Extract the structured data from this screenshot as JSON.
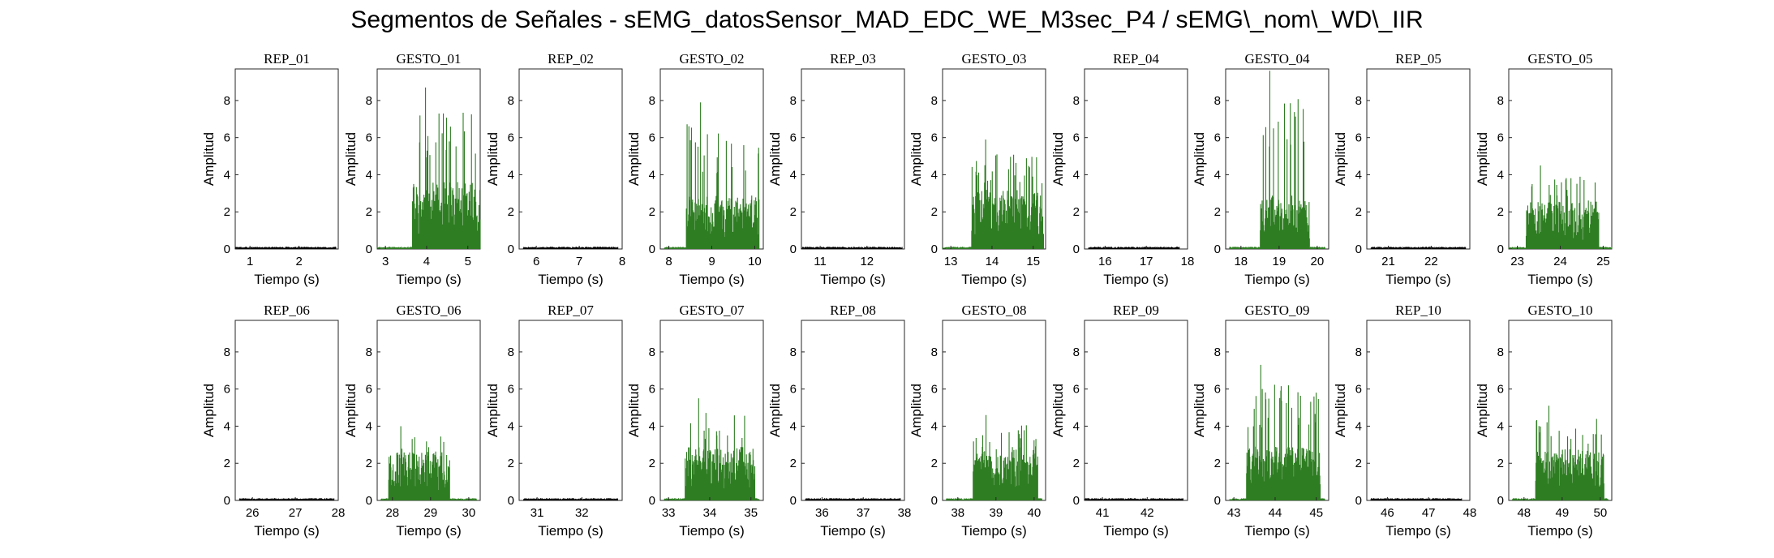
{
  "figure_title": "Segmentos de Señales - sEMG_datosSensor_MAD_EDC_WE_M3sec_P4 / sEMG\\_nom\\_WD\\_IIR",
  "chart_data": {
    "type": "line",
    "grid": false,
    "colors": {
      "rep": "#000000",
      "gesto": "#2e7d22"
    },
    "ylabel": "Amplitud",
    "xlabel": "Tiempo (s)",
    "ylim": [
      0,
      9.7
    ],
    "yticks": [
      0,
      2,
      4,
      6,
      8
    ],
    "subplots": [
      {
        "title": "REP_01",
        "kind": "rep",
        "xlim": [
          0.7,
          2.8
        ],
        "xticks": [
          1,
          2
        ],
        "start": 0.7,
        "end": 2.75
      },
      {
        "title": "GESTO_01",
        "kind": "gesto",
        "xlim": [
          2.8,
          5.3
        ],
        "xticks": [
          3,
          4,
          5
        ],
        "start": 2.8,
        "end": 5.3,
        "active": [
          3.65,
          5.3
        ],
        "peak": 8.7,
        "level": 2.5,
        "seed": 11
      },
      {
        "title": "REP_02",
        "kind": "rep",
        "xlim": [
          5.6,
          8.0
        ],
        "xticks": [
          6,
          7,
          8
        ],
        "start": 5.7,
        "end": 7.9
      },
      {
        "title": "GESTO_02",
        "kind": "gesto",
        "xlim": [
          7.8,
          10.2
        ],
        "xticks": [
          8,
          9,
          10
        ],
        "start": 7.9,
        "end": 10.1,
        "active": [
          8.4,
          10.1
        ],
        "peak": 7.9,
        "level": 2.0,
        "seed": 23
      },
      {
        "title": "REP_03",
        "kind": "rep",
        "xlim": [
          10.6,
          12.8
        ],
        "xticks": [
          11,
          12
        ],
        "start": 10.6,
        "end": 12.75
      },
      {
        "title": "GESTO_03",
        "kind": "gesto",
        "xlim": [
          12.8,
          15.3
        ],
        "xticks": [
          13,
          14,
          15
        ],
        "start": 12.8,
        "end": 15.25,
        "active": [
          13.5,
          15.25
        ],
        "peak": 5.9,
        "level": 2.2,
        "seed": 37
      },
      {
        "title": "REP_04",
        "kind": "rep",
        "xlim": [
          15.5,
          18.0
        ],
        "xticks": [
          16,
          17,
          18
        ],
        "start": 15.6,
        "end": 17.8
      },
      {
        "title": "GESTO_04",
        "kind": "gesto",
        "xlim": [
          17.6,
          20.3
        ],
        "xticks": [
          18,
          19,
          20
        ],
        "start": 17.7,
        "end": 20.2,
        "active": [
          18.5,
          19.8
        ],
        "peak": 9.6,
        "level": 2.0,
        "seed": 41
      },
      {
        "title": "REP_05",
        "kind": "rep",
        "xlim": [
          20.5,
          22.9
        ],
        "xticks": [
          21,
          22
        ],
        "start": 20.6,
        "end": 22.8
      },
      {
        "title": "GESTO_05",
        "kind": "gesto",
        "xlim": [
          22.8,
          25.2
        ],
        "xticks": [
          23,
          24,
          25
        ],
        "start": 22.8,
        "end": 25.2,
        "active": [
          23.2,
          24.9
        ],
        "peak": 4.5,
        "level": 1.8,
        "seed": 53
      },
      {
        "title": "REP_06",
        "kind": "rep",
        "xlim": [
          25.6,
          28.0
        ],
        "xticks": [
          26,
          27,
          28
        ],
        "start": 25.7,
        "end": 27.9
      },
      {
        "title": "GESTO_06",
        "kind": "gesto",
        "xlim": [
          27.6,
          30.3
        ],
        "xticks": [
          28,
          29,
          30
        ],
        "start": 27.7,
        "end": 30.2,
        "active": [
          27.9,
          29.5
        ],
        "peak": 4.0,
        "level": 1.8,
        "seed": 67
      },
      {
        "title": "REP_07",
        "kind": "rep",
        "xlim": [
          30.6,
          32.9
        ],
        "xticks": [
          31,
          32
        ],
        "start": 30.7,
        "end": 32.8
      },
      {
        "title": "GESTO_07",
        "kind": "gesto",
        "xlim": [
          32.8,
          35.3
        ],
        "xticks": [
          33,
          34,
          35
        ],
        "start": 32.9,
        "end": 35.2,
        "active": [
          33.4,
          35.1
        ],
        "peak": 5.5,
        "level": 2.0,
        "seed": 71
      },
      {
        "title": "REP_08",
        "kind": "rep",
        "xlim": [
          35.5,
          38.0
        ],
        "xticks": [
          36,
          37,
          38
        ],
        "start": 35.6,
        "end": 37.9
      },
      {
        "title": "GESTO_08",
        "kind": "gesto",
        "xlim": [
          37.6,
          40.3
        ],
        "xticks": [
          38,
          39,
          40
        ],
        "start": 37.7,
        "end": 40.2,
        "active": [
          38.4,
          40.1
        ],
        "peak": 4.6,
        "level": 1.9,
        "seed": 83
      },
      {
        "title": "REP_09",
        "kind": "rep",
        "xlim": [
          40.6,
          42.9
        ],
        "xticks": [
          41,
          42
        ],
        "start": 40.6,
        "end": 42.8
      },
      {
        "title": "GESTO_09",
        "kind": "gesto",
        "xlim": [
          42.8,
          45.3
        ],
        "xticks": [
          43,
          44,
          45
        ],
        "start": 42.9,
        "end": 45.2,
        "active": [
          43.3,
          45.1
        ],
        "peak": 7.3,
        "level": 2.0,
        "seed": 97
      },
      {
        "title": "REP_10",
        "kind": "rep",
        "xlim": [
          45.5,
          48.0
        ],
        "xticks": [
          46,
          47,
          48
        ],
        "start": 45.6,
        "end": 47.8
      },
      {
        "title": "GESTO_10",
        "kind": "gesto",
        "xlim": [
          47.6,
          50.3
        ],
        "xticks": [
          48,
          49,
          50
        ],
        "start": 47.7,
        "end": 50.2,
        "active": [
          48.3,
          50.1
        ],
        "peak": 5.1,
        "level": 1.9,
        "seed": 101
      }
    ]
  }
}
